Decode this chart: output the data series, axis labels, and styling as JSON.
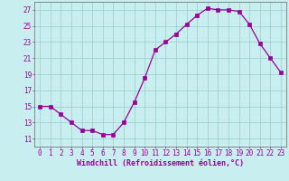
{
  "x": [
    0,
    1,
    2,
    3,
    4,
    5,
    6,
    7,
    8,
    9,
    10,
    11,
    12,
    13,
    14,
    15,
    16,
    17,
    18,
    19,
    20,
    21,
    22,
    23
  ],
  "y": [
    15,
    15,
    14,
    13,
    12,
    12,
    11.5,
    11.5,
    13,
    15.5,
    18.5,
    22,
    23,
    24,
    25.2,
    26.3,
    27.2,
    27,
    27,
    26.8,
    25.2,
    22.8,
    21,
    19.2
  ],
  "line_color": "#990099",
  "marker_color": "#990099",
  "bg_color": "#c8eef0",
  "grid_color": "#99cccc",
  "xlabel": "Windchill (Refroidissement éolien,°C)",
  "ytick_labels": [
    "11",
    "13",
    "15",
    "17",
    "19",
    "21",
    "23",
    "25",
    "27"
  ],
  "ytick_values": [
    11,
    13,
    15,
    17,
    19,
    21,
    23,
    25,
    27
  ],
  "xticks": [
    0,
    1,
    2,
    3,
    4,
    5,
    6,
    7,
    8,
    9,
    10,
    11,
    12,
    13,
    14,
    15,
    16,
    17,
    18,
    19,
    20,
    21,
    22,
    23
  ],
  "xlim": [
    -0.5,
    23.5
  ],
  "ylim": [
    10.0,
    28.0
  ],
  "xlabel_fontsize": 6.0,
  "tick_fontsize": 5.5,
  "linewidth": 0.9,
  "markersize": 2.2
}
